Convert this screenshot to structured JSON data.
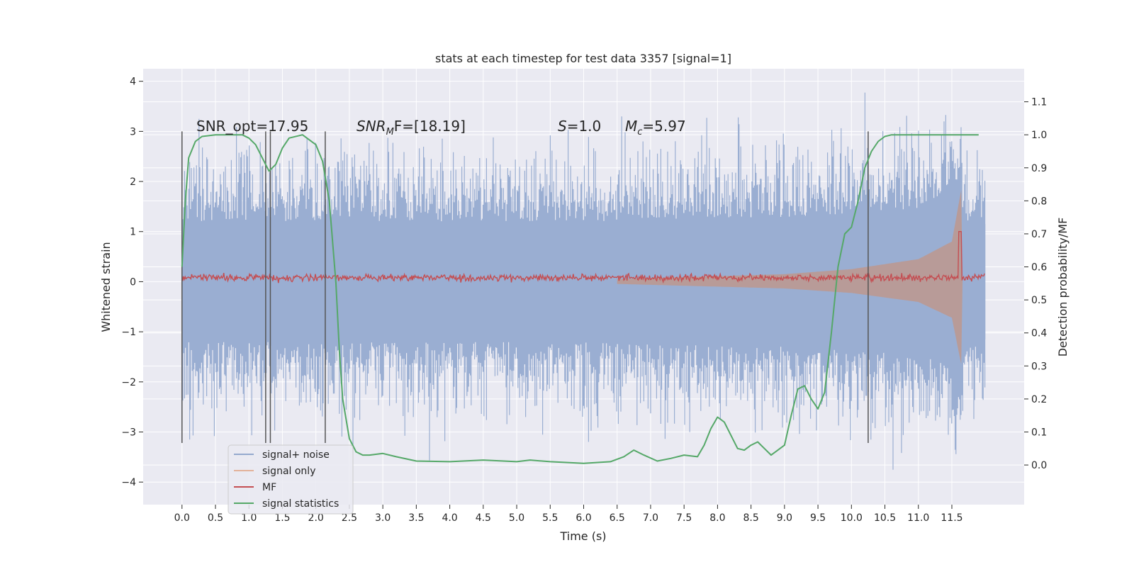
{
  "chart_data": {
    "type": "line",
    "title": "stats at each timestep for test data 3357 [signal=1]",
    "xlabel": "Time (s)",
    "ylabel": "Whitened strain",
    "ylabel_right": "Detection probability/MF",
    "xlim": [
      -0.58,
      12.58
    ],
    "ylim": [
      -4.45,
      4.25
    ],
    "ylim_right": [
      -0.12,
      1.2
    ],
    "x_ticks": [
      "0.0",
      "0.5",
      "1.0",
      "1.5",
      "2.0",
      "2.5",
      "3.0",
      "3.5",
      "4.0",
      "4.5",
      "5.0",
      "5.5",
      "6.0",
      "6.5",
      "7.0",
      "7.5",
      "8.0",
      "8.5",
      "9.0",
      "9.5",
      "10.0",
      "10.5",
      "11.0",
      "11.5"
    ],
    "y_ticks": [
      "4",
      "3",
      "2",
      "1",
      "0",
      "−1",
      "−2",
      "−3",
      "−4"
    ],
    "y_ticks_right": [
      "1.1",
      "1.0",
      "0.9",
      "0.8",
      "0.7",
      "0.6",
      "0.5",
      "0.4",
      "0.3",
      "0.2",
      "0.1",
      "0.0"
    ],
    "grid": true,
    "legend_position": "lower-left",
    "annotations": {
      "snr_opt": "SNR_opt=17.95",
      "snr_mf_main": "SNR",
      "snr_mf_sub": "M",
      "snr_mf_rest": "F=[18.19]",
      "s_main": "S",
      "s_rest": "=1.0",
      "mc_main": "M",
      "mc_sub": "c",
      "mc_rest": "=5.97"
    },
    "vertical_markers_x": [
      0.0,
      1.25,
      1.32,
      2.14,
      10.25
    ],
    "vertical_markers_range": [
      -3.22,
      3.0
    ],
    "series": [
      {
        "name": "signal+ noise",
        "color": "#4c72b0",
        "description_range": [
          -4.1,
          3.9
        ],
        "x_range": [
          0.0,
          12.0
        ]
      },
      {
        "name": "signal only",
        "color": "#dd8452",
        "envelope": [
          [
            6.5,
            0.05
          ],
          [
            9.0,
            0.15
          ],
          [
            10.0,
            0.25
          ],
          [
            11.0,
            0.45
          ],
          [
            11.5,
            0.8
          ],
          [
            11.65,
            1.9
          ]
        ],
        "x_range": [
          6.5,
          11.7
        ]
      },
      {
        "name": "MF",
        "color": "#c44e52",
        "baseline": 0.08,
        "x_range": [
          0.0,
          12.0
        ]
      },
      {
        "name": "signal statistics",
        "color": "#55a868",
        "axis": "right",
        "x": [
          0.0,
          0.05,
          0.1,
          0.2,
          0.3,
          0.5,
          0.7,
          0.9,
          1.0,
          1.1,
          1.2,
          1.3,
          1.4,
          1.5,
          1.6,
          1.8,
          2.0,
          2.1,
          2.2,
          2.3,
          2.35,
          2.4,
          2.5,
          2.6,
          2.7,
          2.8,
          3.0,
          3.2,
          3.5,
          4.0,
          4.5,
          5.0,
          5.2,
          5.5,
          6.0,
          6.4,
          6.6,
          6.75,
          6.9,
          7.1,
          7.3,
          7.5,
          7.7,
          7.8,
          7.9,
          8.0,
          8.1,
          8.2,
          8.3,
          8.4,
          8.5,
          8.6,
          8.7,
          8.8,
          9.0,
          9.1,
          9.2,
          9.3,
          9.4,
          9.5,
          9.6,
          9.7,
          9.8,
          9.9,
          10.0,
          10.1,
          10.2,
          10.3,
          10.4,
          10.5,
          10.6,
          10.8,
          11.0,
          11.5,
          11.9
        ],
        "values": [
          0.6,
          0.8,
          0.93,
          0.98,
          0.995,
          1.0,
          1.0,
          1.0,
          0.99,
          0.97,
          0.93,
          0.89,
          0.91,
          0.96,
          0.99,
          1.0,
          0.97,
          0.92,
          0.8,
          0.55,
          0.35,
          0.2,
          0.08,
          0.04,
          0.03,
          0.03,
          0.035,
          0.025,
          0.012,
          0.01,
          0.015,
          0.01,
          0.015,
          0.01,
          0.005,
          0.01,
          0.025,
          0.045,
          0.03,
          0.012,
          0.02,
          0.03,
          0.025,
          0.06,
          0.11,
          0.145,
          0.13,
          0.09,
          0.05,
          0.045,
          0.06,
          0.07,
          0.05,
          0.03,
          0.06,
          0.15,
          0.23,
          0.24,
          0.2,
          0.17,
          0.22,
          0.4,
          0.6,
          0.7,
          0.72,
          0.8,
          0.9,
          0.95,
          0.98,
          0.995,
          1.0,
          1.0,
          1.0,
          1.0,
          1.0
        ]
      }
    ],
    "legend": [
      "signal+ noise",
      "signal only",
      "MF",
      "signal statistics"
    ]
  }
}
